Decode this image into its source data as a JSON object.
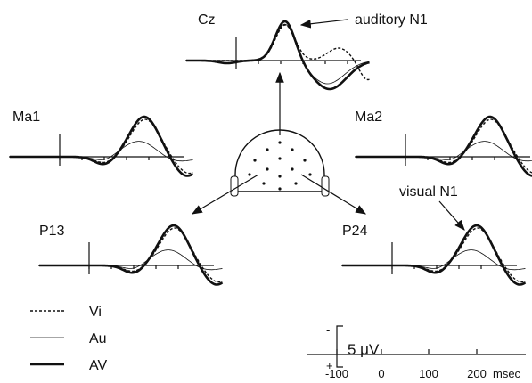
{
  "panels": [
    {
      "label": "Cz"
    },
    {
      "label": "Ma1"
    },
    {
      "label": "Ma2"
    },
    {
      "label": "P13"
    },
    {
      "label": "P24"
    }
  ],
  "annotations": {
    "auditory": "auditory N1",
    "visual": "visual N1"
  },
  "legend": [
    "Vi",
    "Au",
    "AV"
  ],
  "scale_bar": {
    "minus": "-",
    "plus": "+",
    "label": "5 μV"
  },
  "time_axis": {
    "ticks": [
      "-100",
      "0",
      "100",
      "200"
    ],
    "unit": "msec"
  }
}
